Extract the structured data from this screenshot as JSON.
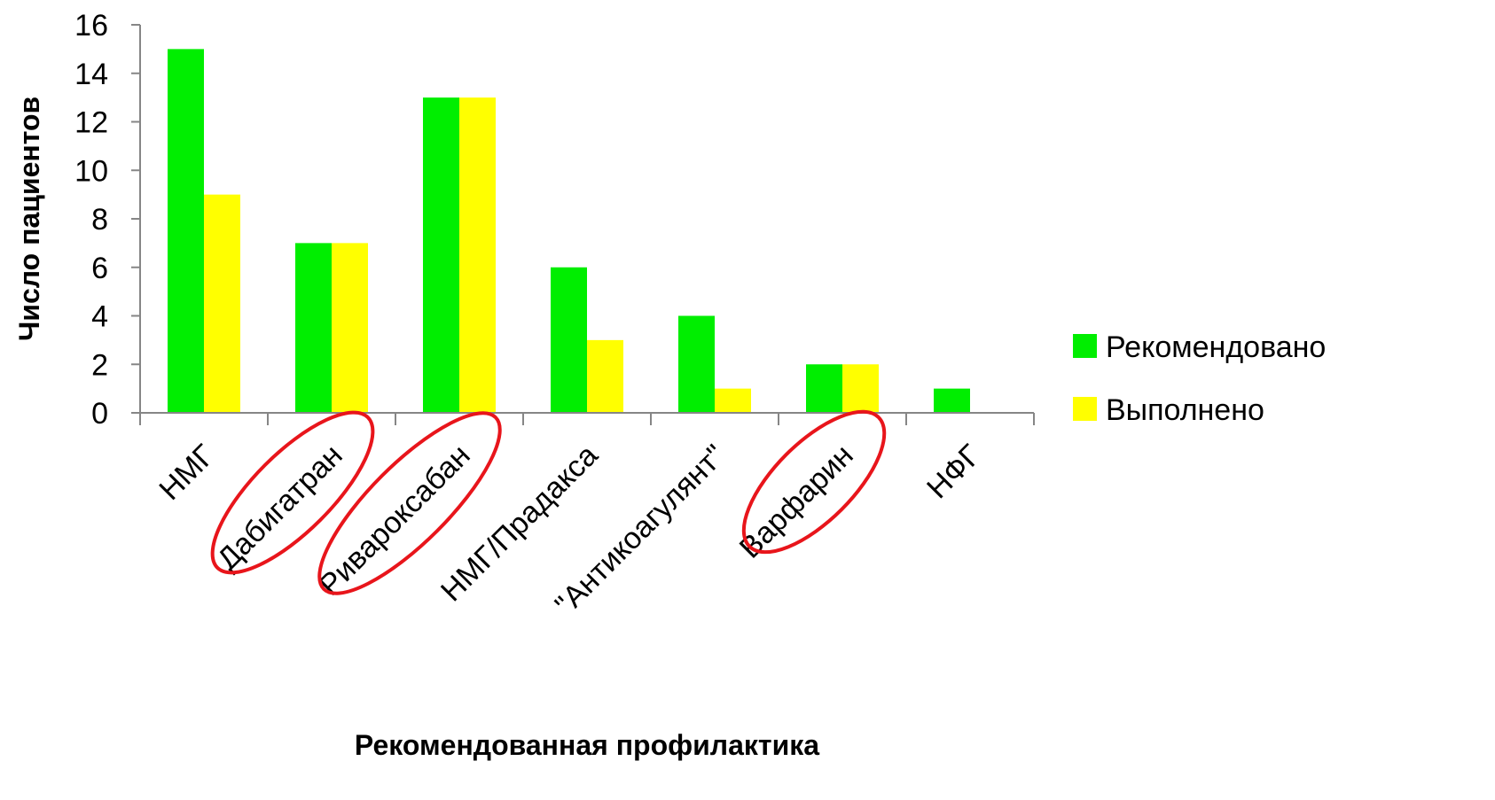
{
  "chart_data": {
    "type": "bar",
    "title": "",
    "xlabel": "Рекомендованная профилактика",
    "ylabel": "Число пациентов",
    "ylim": [
      0,
      16
    ],
    "yticks": [
      0,
      2,
      4,
      6,
      8,
      10,
      12,
      14,
      16
    ],
    "grid": false,
    "legend_position": "right",
    "categories": [
      "НМГ",
      "Дабигатран",
      "Ривароксабан",
      "НМГ/Прадакса",
      "\"Антикоагулянт\"",
      "Варфарин",
      "НФГ"
    ],
    "highlighted_categories": [
      "Дабигатран",
      "Ривароксабан",
      "Варфарин"
    ],
    "highlight_color": "#e8151b",
    "series": [
      {
        "name": "Рекомендовано",
        "color": "#00ee00",
        "values": [
          15,
          7,
          13,
          6,
          4,
          2,
          1
        ]
      },
      {
        "name": "Выполнено",
        "color": "#ffff00",
        "values": [
          9,
          7,
          13,
          3,
          1,
          2,
          0
        ]
      }
    ]
  }
}
